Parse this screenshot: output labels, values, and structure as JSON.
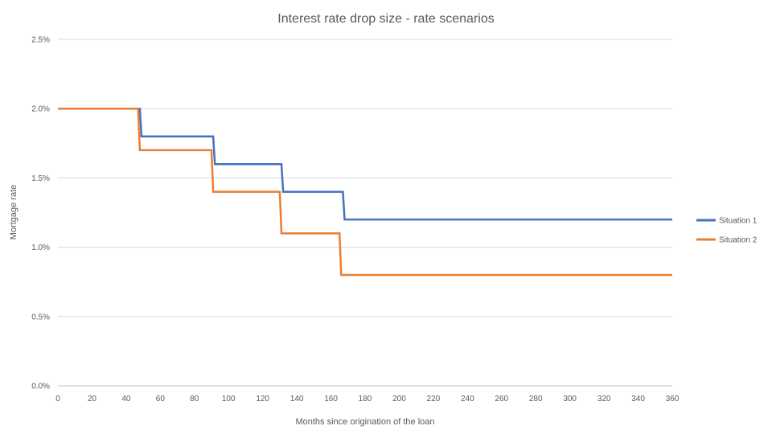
{
  "chart_data": {
    "type": "line",
    "title": "Interest rate drop size - rate scenarios",
    "xlabel": "Months since origination of the loan",
    "ylabel": "Mortgage rate",
    "xlim": [
      0,
      360
    ],
    "ylim": [
      0,
      0.025
    ],
    "x_ticks": [
      "0",
      "20",
      "40",
      "60",
      "80",
      "100",
      "120",
      "140",
      "160",
      "180",
      "200",
      "220",
      "240",
      "260",
      "280",
      "300",
      "320",
      "340",
      "360"
    ],
    "y_ticks": [
      "0.0%",
      "0.5%",
      "1.0%",
      "1.5%",
      "2.0%",
      "2.5%"
    ],
    "grid": "horizontal",
    "legend_position": "right",
    "series": [
      {
        "name": "Situation 1",
        "color": "#4472c4",
        "points": [
          [
            0,
            0.02
          ],
          [
            48,
            0.02
          ],
          [
            49,
            0.018
          ],
          [
            91,
            0.018
          ],
          [
            92,
            0.016
          ],
          [
            131,
            0.016
          ],
          [
            132,
            0.014
          ],
          [
            167,
            0.014
          ],
          [
            168,
            0.012
          ],
          [
            360,
            0.012
          ]
        ]
      },
      {
        "name": "Situation 2",
        "color": "#ed7d31",
        "points": [
          [
            0,
            0.02
          ],
          [
            47,
            0.02
          ],
          [
            48,
            0.017
          ],
          [
            90,
            0.017
          ],
          [
            91,
            0.014
          ],
          [
            130,
            0.014
          ],
          [
            131,
            0.011
          ],
          [
            165,
            0.011
          ],
          [
            166,
            0.008
          ],
          [
            360,
            0.008
          ]
        ]
      }
    ]
  }
}
